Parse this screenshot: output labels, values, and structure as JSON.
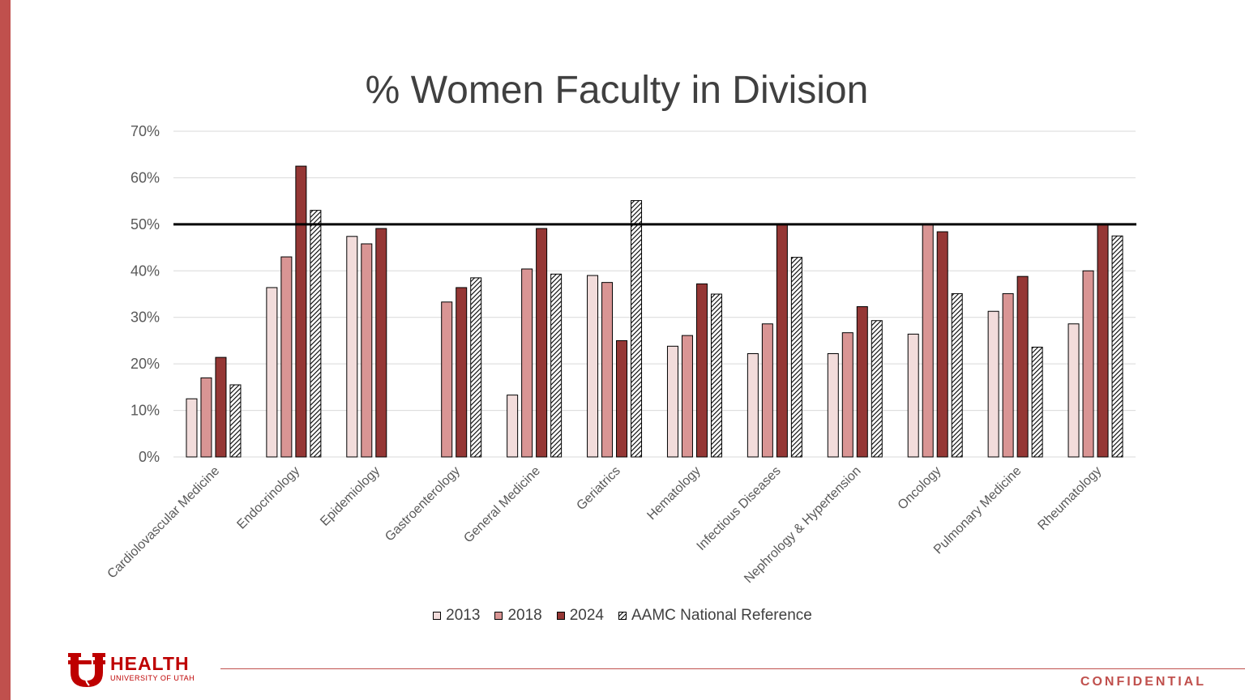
{
  "chart_data": {
    "type": "bar",
    "title": "% Women Faculty in Division",
    "categories": [
      "Cardiolovascular Medicine",
      "Endocrinology",
      "Epidemiology",
      "Gastroenterology",
      "General Medicine",
      "Geriatrics",
      "Hematology",
      "Infectious Diseases",
      "Nephrology & Hypertension",
      "Oncology",
      "Pulmonary Medicine",
      "Rheumatology"
    ],
    "series": [
      {
        "name": "2013",
        "color": "#f2dcdb",
        "values": [
          12.5,
          36.4,
          47.4,
          null,
          13.3,
          39.0,
          23.8,
          22.2,
          22.2,
          26.4,
          31.3,
          28.6
        ]
      },
      {
        "name": "2018",
        "color": "#d99594",
        "values": [
          17.0,
          43.0,
          45.8,
          33.3,
          40.4,
          37.5,
          26.1,
          28.6,
          26.7,
          50.0,
          35.1,
          40.0
        ]
      },
      {
        "name": "2024",
        "color": "#953735",
        "values": [
          21.4,
          62.5,
          49.1,
          36.4,
          49.1,
          25.0,
          37.2,
          50.0,
          32.3,
          48.4,
          38.8,
          50.0
        ]
      },
      {
        "name": "AAMC National Reference",
        "pattern": "hatch",
        "values": [
          15.5,
          53.0,
          null,
          38.5,
          39.3,
          55.1,
          35.0,
          42.9,
          29.3,
          35.1,
          23.6,
          47.5
        ]
      }
    ],
    "y_ticks": [
      "0%",
      "10%",
      "20%",
      "30%",
      "40%",
      "50%",
      "60%",
      "70%"
    ],
    "ylim": [
      0,
      70
    ],
    "reference_line": 50,
    "grid": true,
    "legend_position": "bottom"
  },
  "footer": {
    "logo_health": "HEALTH",
    "logo_sub": "UNIVERSITY OF UTAH",
    "confidential": "CONFIDENTIAL"
  },
  "colors": {
    "accent": "#c0504d",
    "brand_red": "#be0000"
  }
}
